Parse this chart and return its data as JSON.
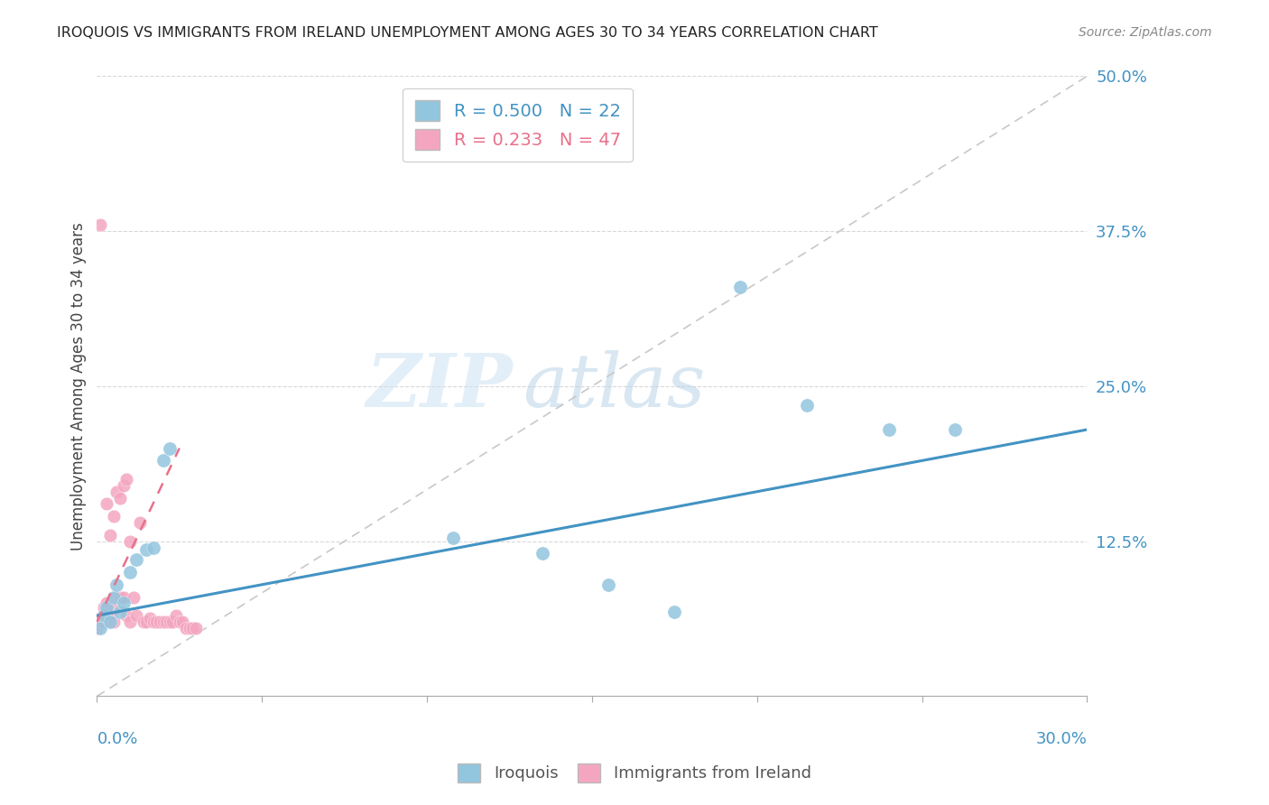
{
  "title": "IROQUOIS VS IMMIGRANTS FROM IRELAND UNEMPLOYMENT AMONG AGES 30 TO 34 YEARS CORRELATION CHART",
  "source": "Source: ZipAtlas.com",
  "ylabel": "Unemployment Among Ages 30 to 34 years",
  "xlim": [
    0.0,
    0.3
  ],
  "ylim": [
    0.0,
    0.5
  ],
  "yticks": [
    0.0,
    0.125,
    0.25,
    0.375,
    0.5
  ],
  "ytick_labels": [
    "",
    "12.5%",
    "25.0%",
    "37.5%",
    "50.0%"
  ],
  "watermark_zip": "ZIP",
  "watermark_atlas": "atlas",
  "legend1_label": "Iroquois",
  "legend2_label": "Immigrants from Ireland",
  "R1": "0.500",
  "N1": "22",
  "R2": "0.233",
  "N2": "47",
  "color_blue": "#92c5de",
  "color_pink": "#f4a6c0",
  "color_blue_line": "#4393c3",
  "color_pink_line": "#e8708a",
  "color_diag": "#c8c8c8",
  "iroquois_x": [
    0.001,
    0.002,
    0.003,
    0.004,
    0.005,
    0.006,
    0.007,
    0.008,
    0.01,
    0.012,
    0.015,
    0.017,
    0.02,
    0.022,
    0.108,
    0.135,
    0.155,
    0.175,
    0.195,
    0.215,
    0.24,
    0.26
  ],
  "iroquois_y": [
    0.055,
    0.065,
    0.072,
    0.06,
    0.08,
    0.09,
    0.068,
    0.075,
    0.1,
    0.11,
    0.118,
    0.12,
    0.19,
    0.2,
    0.128,
    0.115,
    0.09,
    0.068,
    0.33,
    0.235,
    0.215,
    0.215
  ],
  "ireland_x": [
    0.0002,
    0.0005,
    0.001,
    0.001,
    0.001,
    0.0015,
    0.002,
    0.002,
    0.002,
    0.003,
    0.003,
    0.003,
    0.004,
    0.004,
    0.005,
    0.005,
    0.005,
    0.006,
    0.006,
    0.007,
    0.007,
    0.008,
    0.008,
    0.009,
    0.009,
    0.01,
    0.01,
    0.011,
    0.012,
    0.013,
    0.014,
    0.015,
    0.016,
    0.017,
    0.018,
    0.019,
    0.02,
    0.021,
    0.022,
    0.023,
    0.024,
    0.025,
    0.026,
    0.027,
    0.028,
    0.029,
    0.03
  ],
  "ireland_y": [
    0.055,
    0.058,
    0.06,
    0.063,
    0.38,
    0.06,
    0.06,
    0.065,
    0.072,
    0.07,
    0.075,
    0.155,
    0.065,
    0.13,
    0.06,
    0.07,
    0.145,
    0.08,
    0.165,
    0.08,
    0.16,
    0.08,
    0.17,
    0.065,
    0.175,
    0.06,
    0.125,
    0.08,
    0.065,
    0.14,
    0.06,
    0.06,
    0.063,
    0.06,
    0.06,
    0.06,
    0.06,
    0.06,
    0.06,
    0.06,
    0.065,
    0.06,
    0.06,
    0.055,
    0.055,
    0.055,
    0.055
  ]
}
